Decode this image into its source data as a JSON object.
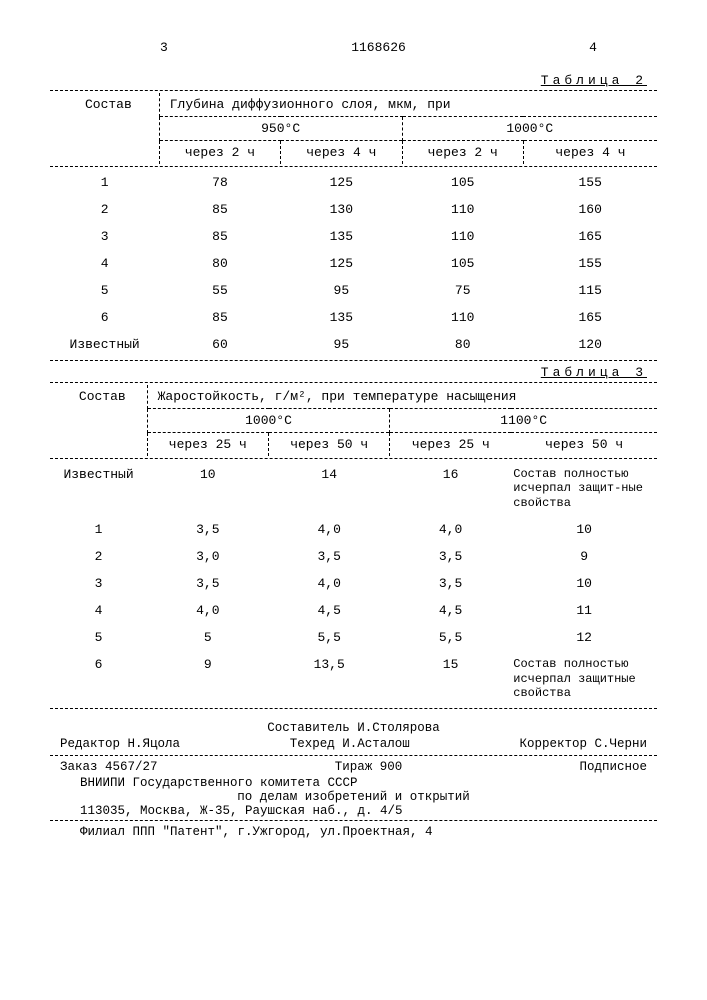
{
  "page": {
    "left_num": "3",
    "doc_num": "1168626",
    "right_num": "4"
  },
  "table2": {
    "label": "Таблица 2",
    "col_header": "Состав",
    "group_header": "Глубина диффузионного слоя, мкм, при",
    "temp1": "950°C",
    "temp2": "1000°C",
    "sub_headers": [
      "через 2 ч",
      "через 4 ч",
      "через 2 ч",
      "через 4 ч"
    ],
    "rows": [
      {
        "c": "1",
        "v": [
          "78",
          "125",
          "105",
          "155"
        ]
      },
      {
        "c": "2",
        "v": [
          "85",
          "130",
          "110",
          "160"
        ]
      },
      {
        "c": "3",
        "v": [
          "85",
          "135",
          "110",
          "165"
        ]
      },
      {
        "c": "4",
        "v": [
          "80",
          "125",
          "105",
          "155"
        ]
      },
      {
        "c": "5",
        "v": [
          "55",
          "95",
          "75",
          "115"
        ]
      },
      {
        "c": "6",
        "v": [
          "85",
          "135",
          "110",
          "165"
        ]
      },
      {
        "c": "Известный",
        "v": [
          "60",
          "95",
          "80",
          "120"
        ]
      }
    ]
  },
  "table3": {
    "label": "Таблица 3",
    "col_header": "Состав",
    "group_header": "Жаростойкость, г/м², при температуре насыщения",
    "temp1": "1000°C",
    "temp2": "1100°C",
    "sub_headers": [
      "через 25 ч",
      "через 50 ч",
      "через 25 ч",
      "через 50 ч"
    ],
    "note_depleted_1": "Состав полностью исчерпал защит-ные свойства",
    "note_depleted_2": "Состав полностью исчерпал защитные свойства",
    "rows": [
      {
        "c": "Известный",
        "v": [
          "10",
          "14",
          "16",
          ""
        ],
        "note": 1
      },
      {
        "c": "1",
        "v": [
          "3,5",
          "4,0",
          "4,0",
          "10"
        ]
      },
      {
        "c": "2",
        "v": [
          "3,0",
          "3,5",
          "3,5",
          "9"
        ]
      },
      {
        "c": "3",
        "v": [
          "3,5",
          "4,0",
          "3,5",
          "10"
        ]
      },
      {
        "c": "4",
        "v": [
          "4,0",
          "4,5",
          "4,5",
          "11"
        ]
      },
      {
        "c": "5",
        "v": [
          "5",
          "5,5",
          "5,5",
          "12"
        ]
      },
      {
        "c": "6",
        "v": [
          "9",
          "13,5",
          "15",
          ""
        ],
        "note": 2
      }
    ]
  },
  "footer": {
    "composer": "Составитель И.Столярова",
    "editor": "Редактор Н.Яцола",
    "techred": "Техред И.Асталош",
    "corrector": "Корректор С.Черни",
    "order": "Заказ 4567/27",
    "tirazh": "Тираж 900",
    "subscription": "Подписное",
    "line1": "ВНИИПИ Государственного комитета СССР",
    "line2": "по делам изобретений и открытий",
    "line3": "113035, Москва, Ж-35, Раушская наб., д. 4/5",
    "line4": "Филиал ППП \"Патент\", г.Ужгород, ул.Проектная, 4"
  }
}
